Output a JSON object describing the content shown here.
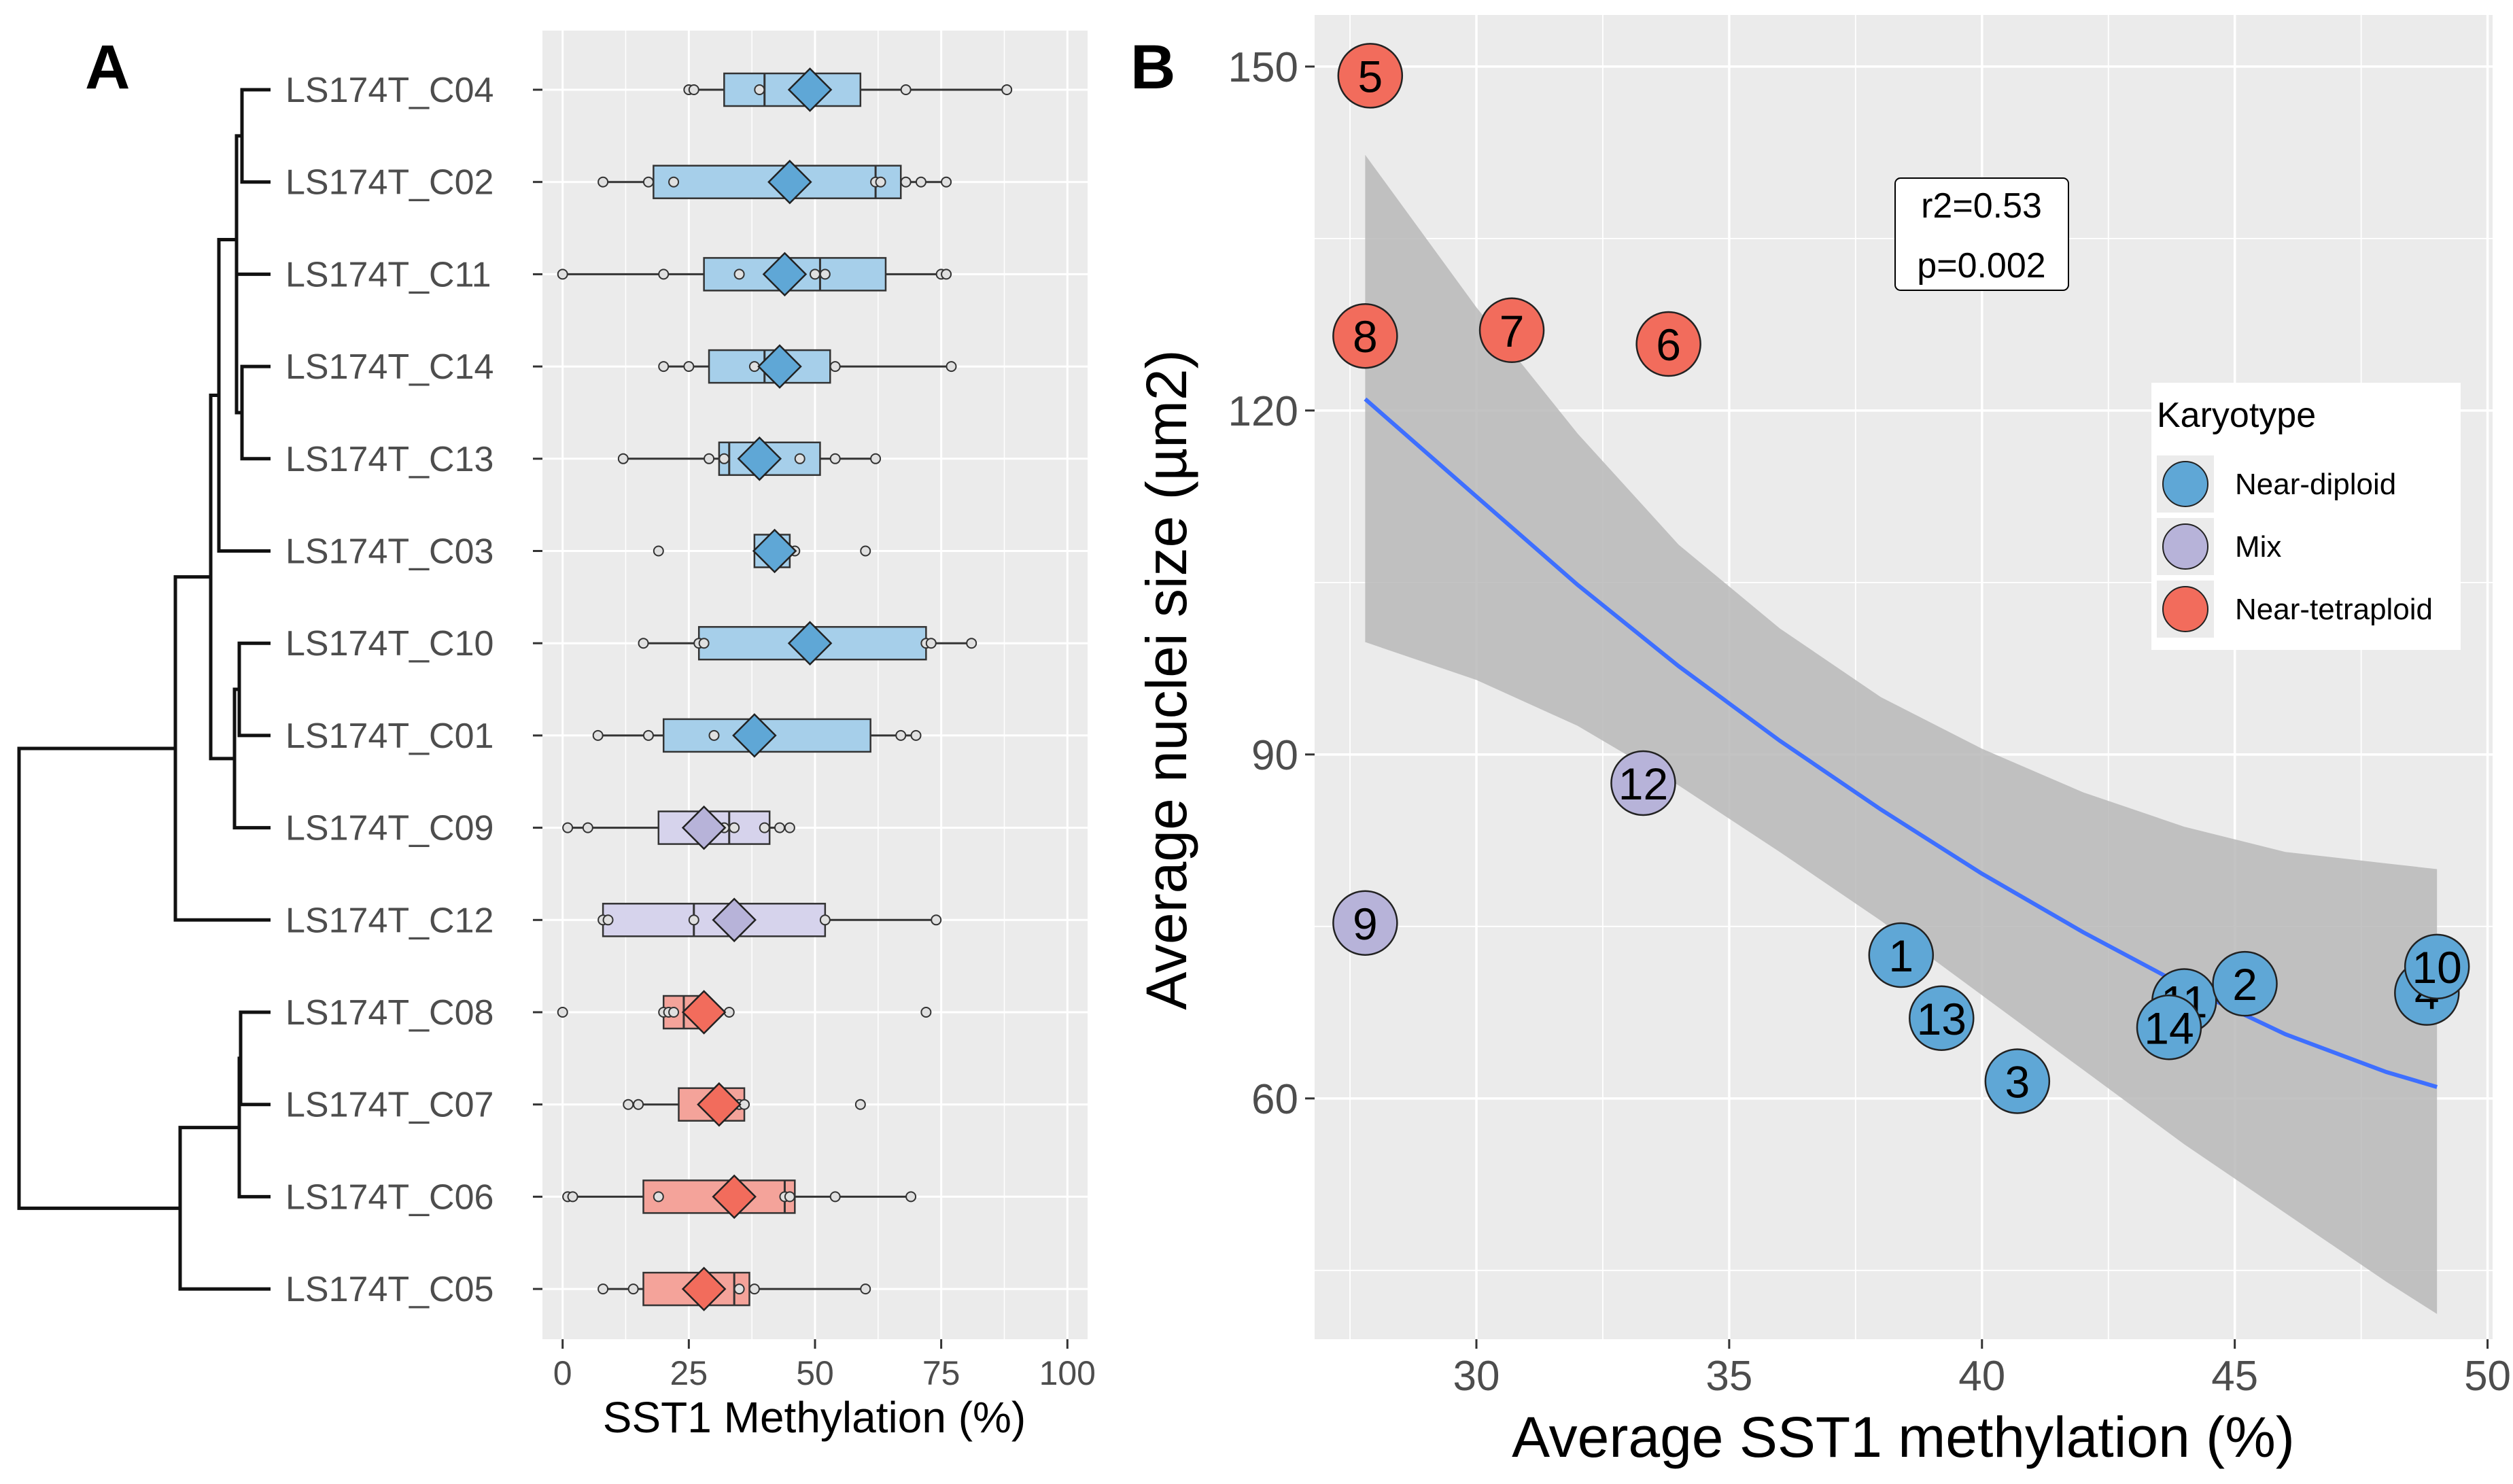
{
  "figure": {
    "panel_a_label": "A",
    "panel_b_label": "B"
  },
  "chart_data": [
    {
      "type": "box",
      "panel": "A",
      "title": "",
      "xlabel": "SST1 Methylation (%)",
      "ylabel": "",
      "xlim": [
        -4,
        104
      ],
      "xticks": [
        0,
        25,
        50,
        75,
        100
      ],
      "grid": true,
      "legend": "none",
      "colors": {
        "Near-diploid": "#5fa7d6",
        "Mix": "#b7b3d9",
        "Near-tetraploid": "#f26c5c",
        "Near-diploid_box": "#a6cfea",
        "Mix_box": "#d6d3ec",
        "Near-tetraploid_box": "#f4a39a"
      },
      "dendrogram_order": [
        "LS174T_C04",
        "LS174T_C02",
        "LS174T_C11",
        "LS174T_C14",
        "LS174T_C13",
        "LS174T_C03",
        "LS174T_C10",
        "LS174T_C01",
        "LS174T_C09",
        "LS174T_C12",
        "LS174T_C08",
        "LS174T_C07",
        "LS174T_C06",
        "LS174T_C05"
      ],
      "samples": [
        {
          "name": "LS174T_C04",
          "group": "Near-diploid",
          "q1": 32,
          "median": 40,
          "q3": 59,
          "whisker_low": 25,
          "whisker_high": 88,
          "mean": 49,
          "points": [
            25,
            26,
            39,
            68,
            88
          ]
        },
        {
          "name": "LS174T_C02",
          "group": "Near-diploid",
          "q1": 18,
          "median": 62,
          "q3": 67,
          "whisker_low": 8,
          "whisker_high": 76,
          "mean": 45,
          "points": [
            8,
            17,
            22,
            62,
            63,
            68,
            71,
            76
          ]
        },
        {
          "name": "LS174T_C11",
          "group": "Near-diploid",
          "q1": 28,
          "median": 51,
          "q3": 64,
          "whisker_low": 0,
          "whisker_high": 76,
          "mean": 44,
          "points": [
            0,
            20,
            35,
            50,
            52,
            75,
            76
          ]
        },
        {
          "name": "LS174T_C14",
          "group": "Near-diploid",
          "q1": 29,
          "median": 40,
          "q3": 53,
          "whisker_low": 20,
          "whisker_high": 77,
          "mean": 43,
          "points": [
            20,
            25,
            38,
            41,
            54,
            77
          ]
        },
        {
          "name": "LS174T_C13",
          "group": "Near-diploid",
          "q1": 31,
          "median": 33,
          "q3": 51,
          "whisker_low": 12,
          "whisker_high": 62,
          "mean": 39,
          "points": [
            12,
            29,
            32,
            47,
            54,
            62
          ]
        },
        {
          "name": "LS174T_C03",
          "group": "Near-diploid",
          "q1": 38,
          "median": 42,
          "q3": 45,
          "whisker_low": 38,
          "whisker_high": 46,
          "mean": 42,
          "points": [
            19,
            44,
            46,
            60
          ]
        },
        {
          "name": "LS174T_C10",
          "group": "Near-diploid",
          "q1": 27,
          "median": 48,
          "q3": 72,
          "whisker_low": 16,
          "whisker_high": 81,
          "mean": 49,
          "points": [
            16,
            27,
            28,
            72,
            73,
            81
          ]
        },
        {
          "name": "LS174T_C01",
          "group": "Near-diploid",
          "q1": 20,
          "median": 38,
          "q3": 61,
          "whisker_low": 7,
          "whisker_high": 70,
          "mean": 38,
          "points": [
            7,
            17,
            30,
            67,
            70
          ]
        },
        {
          "name": "LS174T_C09",
          "group": "Mix",
          "q1": 19,
          "median": 33,
          "q3": 41,
          "whisker_low": 1,
          "whisker_high": 45,
          "mean": 28,
          "points": [
            1,
            5,
            32,
            34,
            40,
            43,
            45
          ]
        },
        {
          "name": "LS174T_C12",
          "group": "Mix",
          "q1": 8,
          "median": 26,
          "q3": 52,
          "whisker_low": 8,
          "whisker_high": 74,
          "mean": 34,
          "points": [
            8,
            9,
            26,
            52,
            74
          ]
        },
        {
          "name": "LS174T_C08",
          "group": "Near-tetraploid",
          "q1": 20,
          "median": 24,
          "q3": 28,
          "whisker_low": 20,
          "whisker_high": 34,
          "mean": 28,
          "points": [
            0,
            20,
            21,
            22,
            33,
            72
          ]
        },
        {
          "name": "LS174T_C07",
          "group": "Near-tetraploid",
          "q1": 23,
          "median": 32,
          "q3": 36,
          "whisker_low": 13,
          "whisker_high": 36,
          "mean": 31,
          "points": [
            13,
            15,
            33,
            35,
            36,
            59
          ]
        },
        {
          "name": "LS174T_C06",
          "group": "Near-tetraploid",
          "q1": 16,
          "median": 44,
          "q3": 46,
          "whisker_low": 1,
          "whisker_high": 69,
          "mean": 34,
          "points": [
            1,
            2,
            19,
            44,
            45,
            54,
            69
          ]
        },
        {
          "name": "LS174T_C05",
          "group": "Near-tetraploid",
          "q1": 16,
          "median": 34,
          "q3": 37,
          "whisker_low": 8,
          "whisker_high": 60,
          "mean": 28,
          "points": [
            8,
            14,
            35,
            38,
            60
          ]
        }
      ]
    },
    {
      "type": "scatter",
      "panel": "B",
      "title": "",
      "xlabel": "Average SST1 methylation (%)",
      "ylabel": "Average nuclei size (µm2)",
      "xlim": [
        26.8,
        50.1
      ],
      "ylim": [
        39,
        154.5
      ],
      "xticks": [
        30,
        35,
        40,
        45,
        50
      ],
      "yticks": [
        60,
        90,
        120,
        150
      ],
      "grid": true,
      "legend": {
        "title": "Karyotype",
        "placement": "right",
        "entries": [
          {
            "label": "Near-diploid",
            "color": "#5fa7d6"
          },
          {
            "label": "Mix",
            "color": "#b7b3d9"
          },
          {
            "label": "Near-tetraploid",
            "color": "#f26c5c"
          }
        ]
      },
      "annotation": [
        "r2=0.53",
        "p=0.002"
      ],
      "points": [
        {
          "label": "5",
          "x": 27.9,
          "y": 149.2,
          "group": "Near-tetraploid"
        },
        {
          "label": "8",
          "x": 27.8,
          "y": 126.5,
          "group": "Near-tetraploid"
        },
        {
          "label": "7",
          "x": 30.7,
          "y": 127.0,
          "group": "Near-tetraploid"
        },
        {
          "label": "6",
          "x": 33.8,
          "y": 125.8,
          "group": "Near-tetraploid"
        },
        {
          "label": "12",
          "x": 33.3,
          "y": 87.5,
          "group": "Mix"
        },
        {
          "label": "9",
          "x": 27.8,
          "y": 75.3,
          "group": "Mix"
        },
        {
          "label": "1",
          "x": 38.4,
          "y": 72.5,
          "group": "Near-diploid"
        },
        {
          "label": "13",
          "x": 39.2,
          "y": 67.0,
          "group": "Near-diploid"
        },
        {
          "label": "3",
          "x": 40.7,
          "y": 61.5,
          "group": "Near-diploid"
        },
        {
          "label": "11",
          "x": 44.0,
          "y": 68.5,
          "group": "Near-diploid"
        },
        {
          "label": "14",
          "x": 43.7,
          "y": 66.2,
          "group": "Near-diploid"
        },
        {
          "label": "2",
          "x": 45.2,
          "y": 70.0,
          "group": "Near-diploid"
        },
        {
          "label": "4",
          "x": 48.8,
          "y": 69.2,
          "group": "Near-diploid"
        },
        {
          "label": "10",
          "x": 49.0,
          "y": 71.5,
          "group": "Near-diploid"
        }
      ],
      "fit_line": {
        "x": [
          27.8,
          30,
          32,
          34,
          36,
          38,
          40,
          42,
          44,
          46,
          48,
          49.0
        ],
        "y": [
          121.0,
          112.5,
          104.8,
          97.7,
          91.2,
          85.2,
          79.6,
          74.5,
          69.8,
          65.6,
          62.3,
          61.0
        ],
        "color": "#3e6fff"
      },
      "ci_band": {
        "x": [
          27.8,
          30,
          32,
          34,
          36,
          38,
          40,
          42,
          44,
          46,
          48,
          49.0
        ],
        "lower": [
          99.8,
          96.5,
          92.5,
          87.3,
          81.5,
          75.5,
          69.0,
          62.5,
          56.0,
          50.0,
          44.0,
          41.2
        ],
        "upper": [
          142.3,
          129.0,
          118.0,
          108.3,
          101.0,
          95.0,
          90.5,
          86.7,
          83.7,
          81.5,
          80.5,
          80.0
        ],
        "color": "#b9b9b9"
      }
    }
  ]
}
